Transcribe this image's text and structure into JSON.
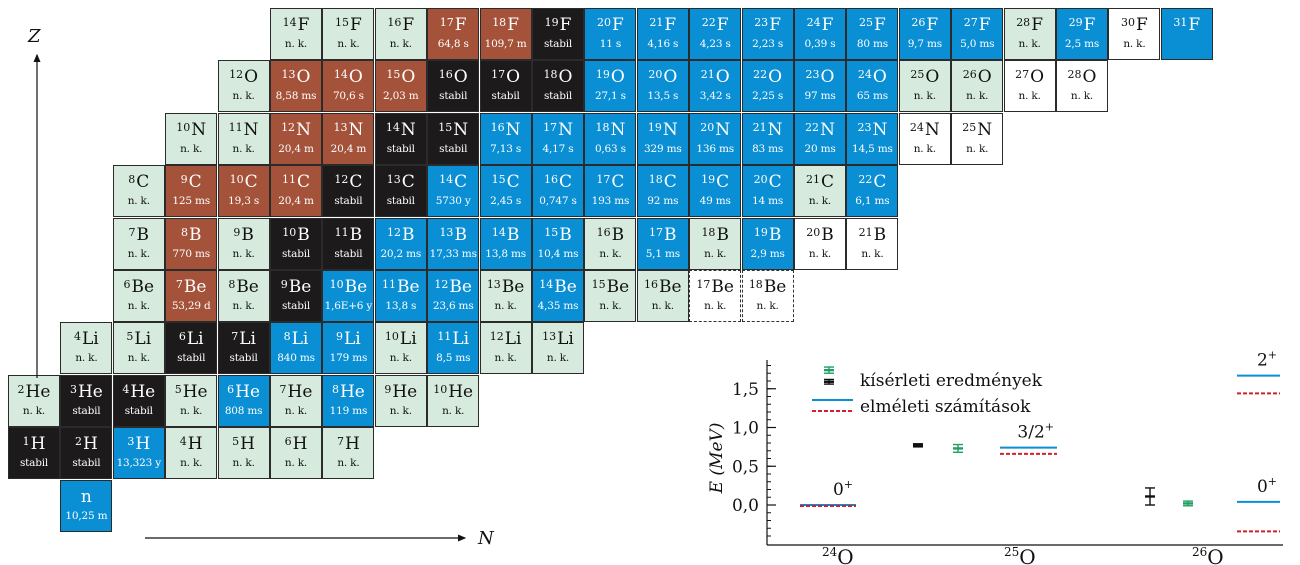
{
  "chart": {
    "colors": {
      "stabil": "#1c1a1b",
      "beta_minus": "#0a8fd4",
      "beta_plus": "#a4533a",
      "unknown": "#d6ebdd",
      "none": "#ffffff"
    },
    "axis_z": "Z",
    "axis_n": "N",
    "cells": [
      {
        "sym": "F",
        "A": "14",
        "hl": "n. k.",
        "t": "unk",
        "z": 9,
        "n": 5
      },
      {
        "sym": "F",
        "A": "15",
        "hl": "n. k.",
        "t": "unk",
        "z": 9,
        "n": 6
      },
      {
        "sym": "F",
        "A": "16",
        "hl": "n. k.",
        "t": "unk",
        "z": 9,
        "n": 7
      },
      {
        "sym": "F",
        "A": "17",
        "hl": "64,8 s",
        "t": "plus",
        "z": 9,
        "n": 8
      },
      {
        "sym": "F",
        "A": "18",
        "hl": "109,7 m",
        "t": "plus",
        "z": 9,
        "n": 9
      },
      {
        "sym": "F",
        "A": "19",
        "hl": "stabil",
        "t": "stable",
        "z": 9,
        "n": 10
      },
      {
        "sym": "F",
        "A": "20",
        "hl": "11 s",
        "t": "beta",
        "z": 9,
        "n": 11
      },
      {
        "sym": "F",
        "A": "21",
        "hl": "4,16 s",
        "t": "beta",
        "z": 9,
        "n": 12
      },
      {
        "sym": "F",
        "A": "22",
        "hl": "4,23 s",
        "t": "beta",
        "z": 9,
        "n": 13
      },
      {
        "sym": "F",
        "A": "23",
        "hl": "2,23 s",
        "t": "beta",
        "z": 9,
        "n": 14
      },
      {
        "sym": "F",
        "A": "24",
        "hl": "0,39 s",
        "t": "beta",
        "z": 9,
        "n": 15
      },
      {
        "sym": "F",
        "A": "25",
        "hl": "80 ms",
        "t": "beta",
        "z": 9,
        "n": 16
      },
      {
        "sym": "F",
        "A": "26",
        "hl": "9,7 ms",
        "t": "beta",
        "z": 9,
        "n": 17
      },
      {
        "sym": "F",
        "A": "27",
        "hl": "5,0 ms",
        "t": "beta",
        "z": 9,
        "n": 18
      },
      {
        "sym": "F",
        "A": "28",
        "hl": "n. k.",
        "t": "unk",
        "z": 9,
        "n": 19
      },
      {
        "sym": "F",
        "A": "29",
        "hl": "2,5 ms",
        "t": "beta",
        "z": 9,
        "n": 20
      },
      {
        "sym": "F",
        "A": "30",
        "hl": "n. k.",
        "t": "none",
        "z": 9,
        "n": 21
      },
      {
        "sym": "F",
        "A": "31",
        "hl": "",
        "t": "beta",
        "z": 9,
        "n": 22
      },
      {
        "sym": "O",
        "A": "12",
        "hl": "n. k.",
        "t": "unk",
        "z": 8,
        "n": 4
      },
      {
        "sym": "O",
        "A": "13",
        "hl": "8,58 ms",
        "t": "plus",
        "z": 8,
        "n": 5
      },
      {
        "sym": "O",
        "A": "14",
        "hl": "70,6 s",
        "t": "plus",
        "z": 8,
        "n": 6
      },
      {
        "sym": "O",
        "A": "15",
        "hl": "2,03 m",
        "t": "plus",
        "z": 8,
        "n": 7
      },
      {
        "sym": "O",
        "A": "16",
        "hl": "stabil",
        "t": "stable",
        "z": 8,
        "n": 8
      },
      {
        "sym": "O",
        "A": "17",
        "hl": "stabil",
        "t": "stable",
        "z": 8,
        "n": 9
      },
      {
        "sym": "O",
        "A": "18",
        "hl": "stabil",
        "t": "stable",
        "z": 8,
        "n": 10
      },
      {
        "sym": "O",
        "A": "19",
        "hl": "27,1 s",
        "t": "beta",
        "z": 8,
        "n": 11
      },
      {
        "sym": "O",
        "A": "20",
        "hl": "13,5 s",
        "t": "beta",
        "z": 8,
        "n": 12
      },
      {
        "sym": "O",
        "A": "21",
        "hl": "3,42 s",
        "t": "beta",
        "z": 8,
        "n": 13
      },
      {
        "sym": "O",
        "A": "22",
        "hl": "2,25 s",
        "t": "beta",
        "z": 8,
        "n": 14
      },
      {
        "sym": "O",
        "A": "23",
        "hl": "97 ms",
        "t": "beta",
        "z": 8,
        "n": 15
      },
      {
        "sym": "O",
        "A": "24",
        "hl": "65 ms",
        "t": "beta",
        "z": 8,
        "n": 16
      },
      {
        "sym": "O",
        "A": "25",
        "hl": "n. k.",
        "t": "unk",
        "z": 8,
        "n": 17
      },
      {
        "sym": "O",
        "A": "26",
        "hl": "n. k.",
        "t": "unk",
        "z": 8,
        "n": 18
      },
      {
        "sym": "O",
        "A": "27",
        "hl": "n. k.",
        "t": "none",
        "z": 8,
        "n": 19
      },
      {
        "sym": "O",
        "A": "28",
        "hl": "n. k.",
        "t": "none",
        "z": 8,
        "n": 20
      },
      {
        "sym": "N",
        "A": "10",
        "hl": "n. k.",
        "t": "unk",
        "z": 7,
        "n": 3
      },
      {
        "sym": "N",
        "A": "11",
        "hl": "n. k.",
        "t": "unk",
        "z": 7,
        "n": 4
      },
      {
        "sym": "N",
        "A": "12",
        "hl": "20,4 m",
        "t": "plus",
        "z": 7,
        "n": 5
      },
      {
        "sym": "N",
        "A": "13",
        "hl": "20,4 m",
        "t": "plus",
        "z": 7,
        "n": 6
      },
      {
        "sym": "N",
        "A": "14",
        "hl": "stabil",
        "t": "stable",
        "z": 7,
        "n": 7
      },
      {
        "sym": "N",
        "A": "15",
        "hl": "stabil",
        "t": "stable",
        "z": 7,
        "n": 8
      },
      {
        "sym": "N",
        "A": "16",
        "hl": "7,13 s",
        "t": "beta",
        "z": 7,
        "n": 9
      },
      {
        "sym": "N",
        "A": "17",
        "hl": "4,17 s",
        "t": "beta",
        "z": 7,
        "n": 10
      },
      {
        "sym": "N",
        "A": "18",
        "hl": "0,63 s",
        "t": "beta",
        "z": 7,
        "n": 11
      },
      {
        "sym": "N",
        "A": "19",
        "hl": "329 ms",
        "t": "beta",
        "z": 7,
        "n": 12
      },
      {
        "sym": "N",
        "A": "20",
        "hl": "136 ms",
        "t": "beta",
        "z": 7,
        "n": 13
      },
      {
        "sym": "N",
        "A": "21",
        "hl": "83 ms",
        "t": "beta",
        "z": 7,
        "n": 14
      },
      {
        "sym": "N",
        "A": "22",
        "hl": "20 ms",
        "t": "beta",
        "z": 7,
        "n": 15
      },
      {
        "sym": "N",
        "A": "23",
        "hl": "14,5 ms",
        "t": "beta",
        "z": 7,
        "n": 16
      },
      {
        "sym": "N",
        "A": "24",
        "hl": "n. k.",
        "t": "none",
        "z": 7,
        "n": 17
      },
      {
        "sym": "N",
        "A": "25",
        "hl": "n. k.",
        "t": "none",
        "z": 7,
        "n": 18
      },
      {
        "sym": "C",
        "A": "8",
        "hl": "n. k.",
        "t": "unk",
        "z": 6,
        "n": 2
      },
      {
        "sym": "C",
        "A": "9",
        "hl": "125 ms",
        "t": "plus",
        "z": 6,
        "n": 3
      },
      {
        "sym": "C",
        "A": "10",
        "hl": "19,3 s",
        "t": "plus",
        "z": 6,
        "n": 4
      },
      {
        "sym": "C",
        "A": "11",
        "hl": "20,4 m",
        "t": "plus",
        "z": 6,
        "n": 5
      },
      {
        "sym": "C",
        "A": "12",
        "hl": "stabil",
        "t": "stable",
        "z": 6,
        "n": 6
      },
      {
        "sym": "C",
        "A": "13",
        "hl": "stabil",
        "t": "stable",
        "z": 6,
        "n": 7
      },
      {
        "sym": "C",
        "A": "14",
        "hl": "5730 y",
        "t": "beta",
        "z": 6,
        "n": 8
      },
      {
        "sym": "C",
        "A": "15",
        "hl": "2,45 s",
        "t": "beta",
        "z": 6,
        "n": 9
      },
      {
        "sym": "C",
        "A": "16",
        "hl": "0,747 s",
        "t": "beta",
        "z": 6,
        "n": 10
      },
      {
        "sym": "C",
        "A": "17",
        "hl": "193 ms",
        "t": "beta",
        "z": 6,
        "n": 11
      },
      {
        "sym": "C",
        "A": "18",
        "hl": "92 ms",
        "t": "beta",
        "z": 6,
        "n": 12
      },
      {
        "sym": "C",
        "A": "19",
        "hl": "49 ms",
        "t": "beta",
        "z": 6,
        "n": 13
      },
      {
        "sym": "C",
        "A": "20",
        "hl": "14 ms",
        "t": "beta",
        "z": 6,
        "n": 14
      },
      {
        "sym": "C",
        "A": "21",
        "hl": "n. k.",
        "t": "unk",
        "z": 6,
        "n": 15
      },
      {
        "sym": "C",
        "A": "22",
        "hl": "6,1 ms",
        "t": "beta",
        "z": 6,
        "n": 16
      },
      {
        "sym": "B",
        "A": "7",
        "hl": "n. k.",
        "t": "unk",
        "z": 5,
        "n": 2
      },
      {
        "sym": "B",
        "A": "8",
        "hl": "770 ms",
        "t": "plus",
        "z": 5,
        "n": 3
      },
      {
        "sym": "B",
        "A": "9",
        "hl": "n. k.",
        "t": "unk",
        "z": 5,
        "n": 4
      },
      {
        "sym": "B",
        "A": "10",
        "hl": "stabil",
        "t": "stable",
        "z": 5,
        "n": 5
      },
      {
        "sym": "B",
        "A": "11",
        "hl": "stabil",
        "t": "stable",
        "z": 5,
        "n": 6
      },
      {
        "sym": "B",
        "A": "12",
        "hl": "20,2 ms",
        "t": "beta",
        "z": 5,
        "n": 7
      },
      {
        "sym": "B",
        "A": "13",
        "hl": "17,33 ms",
        "t": "beta",
        "z": 5,
        "n": 8
      },
      {
        "sym": "B",
        "A": "14",
        "hl": "13,8 ms",
        "t": "beta",
        "z": 5,
        "n": 9
      },
      {
        "sym": "B",
        "A": "15",
        "hl": "10,4 ms",
        "t": "beta",
        "z": 5,
        "n": 10
      },
      {
        "sym": "B",
        "A": "16",
        "hl": "n. k.",
        "t": "unk",
        "z": 5,
        "n": 11
      },
      {
        "sym": "B",
        "A": "17",
        "hl": "5,1 ms",
        "t": "beta",
        "z": 5,
        "n": 12
      },
      {
        "sym": "B",
        "A": "18",
        "hl": "n. k.",
        "t": "unk",
        "z": 5,
        "n": 13
      },
      {
        "sym": "B",
        "A": "19",
        "hl": "2,9 ms",
        "t": "beta",
        "z": 5,
        "n": 14
      },
      {
        "sym": "B",
        "A": "20",
        "hl": "n. k.",
        "t": "none",
        "z": 5,
        "n": 15
      },
      {
        "sym": "B",
        "A": "21",
        "hl": "n. k.",
        "t": "none",
        "z": 5,
        "n": 16
      },
      {
        "sym": "Be",
        "A": "6",
        "hl": "n. k.",
        "t": "unk",
        "z": 4,
        "n": 2
      },
      {
        "sym": "Be",
        "A": "7",
        "hl": "53,29 d",
        "t": "plus",
        "z": 4,
        "n": 3
      },
      {
        "sym": "Be",
        "A": "8",
        "hl": "n. k.",
        "t": "unk",
        "z": 4,
        "n": 4
      },
      {
        "sym": "Be",
        "A": "9",
        "hl": "stabil",
        "t": "stable",
        "z": 4,
        "n": 5
      },
      {
        "sym": "Be",
        "A": "10",
        "hl": "1,6E+6 y",
        "t": "beta",
        "z": 4,
        "n": 6
      },
      {
        "sym": "Be",
        "A": "11",
        "hl": "13,8 s",
        "t": "beta",
        "z": 4,
        "n": 7
      },
      {
        "sym": "Be",
        "A": "12",
        "hl": "23,6 ms",
        "t": "beta",
        "z": 4,
        "n": 8
      },
      {
        "sym": "Be",
        "A": "13",
        "hl": "n. k.",
        "t": "unk",
        "z": 4,
        "n": 9
      },
      {
        "sym": "Be",
        "A": "14",
        "hl": "4,35 ms",
        "t": "beta",
        "z": 4,
        "n": 10
      },
      {
        "sym": "Be",
        "A": "15",
        "hl": "n. k.",
        "t": "unk",
        "z": 4,
        "n": 11
      },
      {
        "sym": "Be",
        "A": "16",
        "hl": "n. k.",
        "t": "unk",
        "z": 4,
        "n": 12
      },
      {
        "sym": "Be",
        "A": "17",
        "hl": "n. k.",
        "t": "dash",
        "z": 4,
        "n": 13
      },
      {
        "sym": "Be",
        "A": "18",
        "hl": "n. k.",
        "t": "dash",
        "z": 4,
        "n": 14
      },
      {
        "sym": "Li",
        "A": "4",
        "hl": "n. k.",
        "t": "unk",
        "z": 3,
        "n": 1
      },
      {
        "sym": "Li",
        "A": "5",
        "hl": "n. k.",
        "t": "unk",
        "z": 3,
        "n": 2
      },
      {
        "sym": "Li",
        "A": "6",
        "hl": "stabil",
        "t": "stable",
        "z": 3,
        "n": 3
      },
      {
        "sym": "Li",
        "A": "7",
        "hl": "stabil",
        "t": "stable",
        "z": 3,
        "n": 4
      },
      {
        "sym": "Li",
        "A": "8",
        "hl": "840 ms",
        "t": "beta",
        "z": 3,
        "n": 5
      },
      {
        "sym": "Li",
        "A": "9",
        "hl": "179 ms",
        "t": "beta",
        "z": 3,
        "n": 6
      },
      {
        "sym": "Li",
        "A": "10",
        "hl": "n. k.",
        "t": "unk",
        "z": 3,
        "n": 7
      },
      {
        "sym": "Li",
        "A": "11",
        "hl": "8,5 ms",
        "t": "beta",
        "z": 3,
        "n": 8
      },
      {
        "sym": "Li",
        "A": "12",
        "hl": "n. k.",
        "t": "unk",
        "z": 3,
        "n": 9
      },
      {
        "sym": "Li",
        "A": "13",
        "hl": "n. k.",
        "t": "unk",
        "z": 3,
        "n": 10
      },
      {
        "sym": "He",
        "A": "2",
        "hl": "n. k.",
        "t": "unk",
        "z": 2,
        "n": 0
      },
      {
        "sym": "He",
        "A": "3",
        "hl": "stabil",
        "t": "stable",
        "z": 2,
        "n": 1
      },
      {
        "sym": "He",
        "A": "4",
        "hl": "stabil",
        "t": "stable",
        "z": 2,
        "n": 2
      },
      {
        "sym": "He",
        "A": "5",
        "hl": "n. k.",
        "t": "unk",
        "z": 2,
        "n": 3
      },
      {
        "sym": "He",
        "A": "6",
        "hl": "808 ms",
        "t": "beta",
        "z": 2,
        "n": 4
      },
      {
        "sym": "He",
        "A": "7",
        "hl": "n. k.",
        "t": "unk",
        "z": 2,
        "n": 5
      },
      {
        "sym": "He",
        "A": "8",
        "hl": "119 ms",
        "t": "beta",
        "z": 2,
        "n": 6
      },
      {
        "sym": "He",
        "A": "9",
        "hl": "n. k.",
        "t": "unk",
        "z": 2,
        "n": 7
      },
      {
        "sym": "He",
        "A": "10",
        "hl": "n. k.",
        "t": "unk",
        "z": 2,
        "n": 8
      },
      {
        "sym": "H",
        "A": "1",
        "hl": "stabil",
        "t": "stable",
        "z": 1,
        "n": 0
      },
      {
        "sym": "H",
        "A": "2",
        "hl": "stabil",
        "t": "stable",
        "z": 1,
        "n": 1
      },
      {
        "sym": "H",
        "A": "3",
        "hl": "13,323 y",
        "t": "beta",
        "z": 1,
        "n": 2
      },
      {
        "sym": "H",
        "A": "4",
        "hl": "n. k.",
        "t": "unk",
        "z": 1,
        "n": 3
      },
      {
        "sym": "H",
        "A": "5",
        "hl": "n. k.",
        "t": "unk",
        "z": 1,
        "n": 4
      },
      {
        "sym": "H",
        "A": "6",
        "hl": "n. k.",
        "t": "unk",
        "z": 1,
        "n": 5
      },
      {
        "sym": "H",
        "A": "7",
        "hl": "n. k.",
        "t": "unk",
        "z": 1,
        "n": 6
      },
      {
        "sym": "n",
        "A": "",
        "hl": "10,25 m",
        "t": "beta",
        "z": 0,
        "n": 1
      }
    ]
  },
  "chart_data": {
    "type": "scatter",
    "ylabel": "E (MeV)",
    "ylim": [
      -0.45,
      1.85
    ],
    "yticks": [
      "0,0",
      "0,5",
      "1,0",
      "1,5"
    ],
    "ytick_values": [
      0.0,
      0.5,
      1.0,
      1.5
    ],
    "categories": [
      "24O",
      "25O",
      "26O"
    ],
    "category_labels": [
      {
        "A": "24",
        "sym": "O"
      },
      {
        "A": "25",
        "sym": "O"
      },
      {
        "A": "26",
        "sym": "O"
      }
    ],
    "legend": {
      "experimental": "kísérleti eredmények",
      "theory": "elméleti számítások"
    },
    "experimental": {
      "black": [
        {
          "category": "25O",
          "value": 0.77,
          "err": 0.02
        },
        {
          "category": "26O",
          "value": 0.11,
          "err": 0.11
        }
      ],
      "green": [
        {
          "category": "25O",
          "value": 0.73,
          "err": 0.05
        },
        {
          "category": "26O",
          "value": 0.02,
          "err": 0.03
        },
        {
          "category": "26O",
          "value": 1.74,
          "err": 0.05
        }
      ]
    },
    "theory": {
      "solid": [
        {
          "category": "24O",
          "value": 0.0,
          "label": "0+"
        },
        {
          "category": "25O",
          "value": 0.74,
          "label": "3/2+"
        },
        {
          "category": "26O",
          "value": 0.04,
          "label": "0+"
        },
        {
          "category": "26O",
          "value": 1.67,
          "label": "2+"
        }
      ],
      "dashed": [
        {
          "category": "24O",
          "value": 0.0
        },
        {
          "category": "25O",
          "value": 0.66
        },
        {
          "category": "26O",
          "value": -0.34
        },
        {
          "category": "26O",
          "value": 1.44
        }
      ]
    },
    "colors": {
      "black": "#111111",
      "green": "#20a060",
      "solid": "#0a8fd4",
      "dashed": "#d4202a"
    }
  }
}
